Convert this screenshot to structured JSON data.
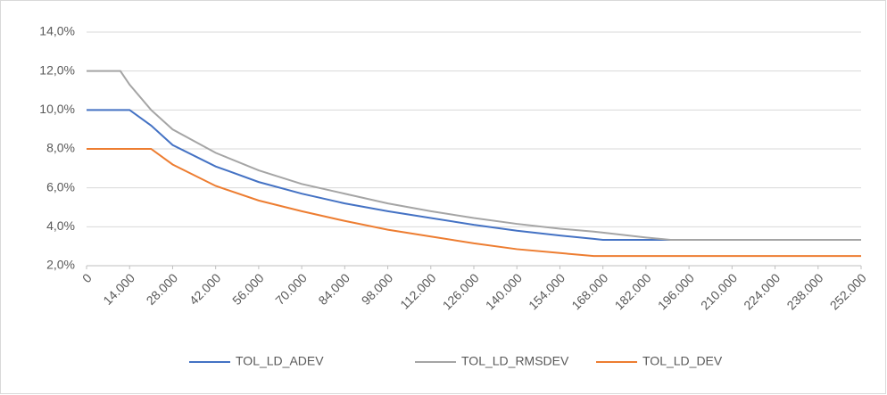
{
  "chart_data": {
    "type": "line",
    "x": [
      0,
      11000,
      14000,
      21000,
      28000,
      42000,
      56000,
      70000,
      84000,
      98000,
      112000,
      126000,
      140000,
      154000,
      165000,
      168000,
      182000,
      190000,
      252000
    ],
    "series": [
      {
        "name": "TOL_LD_ADEV",
        "color": "#4472c4",
        "values": [
          10,
          10,
          10,
          9.2,
          8.2,
          7.1,
          6.3,
          5.7,
          5.2,
          4.8,
          4.45,
          4.1,
          3.8,
          3.55,
          3.38,
          3.33,
          3.33,
          3.33,
          3.33
        ]
      },
      {
        "name": "TOL_LD_RMSDEV",
        "color": "#a5a5a5",
        "values": [
          12,
          12,
          11.3,
          10.0,
          9.0,
          7.8,
          6.9,
          6.2,
          5.7,
          5.2,
          4.8,
          4.45,
          4.15,
          3.9,
          3.75,
          3.7,
          3.45,
          3.33,
          3.33
        ]
      },
      {
        "name": "TOL_LD_DEV",
        "color": "#ed7d31",
        "values": [
          8,
          8,
          8,
          8,
          7.2,
          6.1,
          5.35,
          4.8,
          4.3,
          3.85,
          3.5,
          3.15,
          2.85,
          2.65,
          2.5,
          2.5,
          2.5,
          2.5,
          2.5
        ]
      }
    ],
    "xlim": [
      0,
      252000
    ],
    "xticks": [
      0,
      {
        "value": 14000,
        "label": "14.000"
      },
      {
        "value": 28000,
        "label": "28.000"
      },
      {
        "value": 42000,
        "label": "42.000"
      },
      {
        "value": 56000,
        "label": "56.000"
      },
      {
        "value": 70000,
        "label": "70.000"
      },
      {
        "value": 84000,
        "label": "84.000"
      },
      {
        "value": 98000,
        "label": "98.000"
      },
      {
        "value": 112000,
        "label": "112.000"
      },
      {
        "value": 126000,
        "label": "126.000"
      },
      {
        "value": 140000,
        "label": "140.000"
      },
      {
        "value": 154000,
        "label": "154.000"
      },
      {
        "value": 168000,
        "label": "168.000"
      },
      {
        "value": 182000,
        "label": "182.000"
      },
      {
        "value": 196000,
        "label": "196.000"
      },
      {
        "value": 210000,
        "label": "210.000"
      },
      {
        "value": 224000,
        "label": "224.000"
      },
      {
        "value": 238000,
        "label": "238.000"
      },
      {
        "value": 252000,
        "label": "252.000"
      }
    ],
    "ylim": [
      2,
      14
    ],
    "yticks": [
      {
        "value": 2,
        "label": "2,0%"
      },
      {
        "value": 4,
        "label": "4,0%"
      },
      {
        "value": 6,
        "label": "6,0%"
      },
      {
        "value": 8,
        "label": "8,0%"
      },
      {
        "value": 10,
        "label": "10,0%"
      },
      {
        "value": 12,
        "label": "12,0%"
      },
      {
        "value": 14,
        "label": "14,0%"
      }
    ],
    "grid": true,
    "legend": "bottom"
  }
}
